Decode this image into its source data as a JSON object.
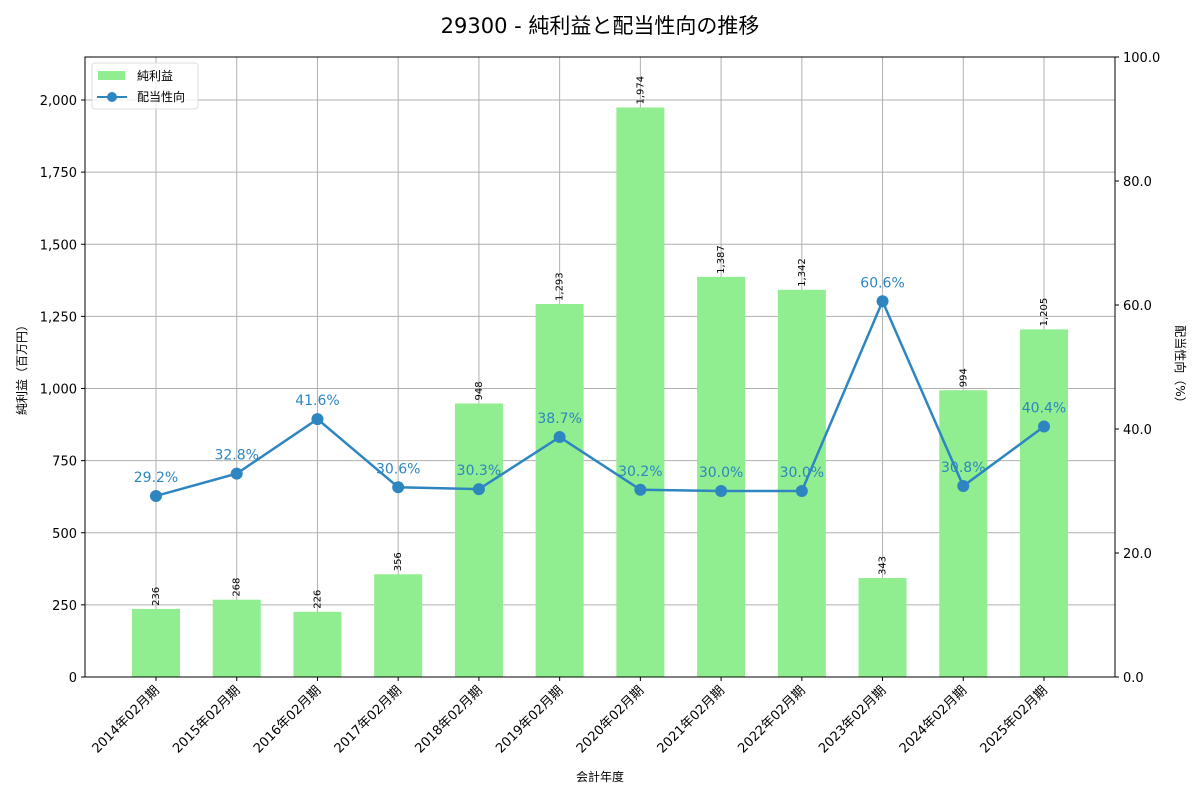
{
  "title": "29300 - 純利益と配当性向の推移",
  "colors": {
    "bar": "#90ee90",
    "line": "#2e86c1",
    "grid": "#b0b0b0"
  },
  "chart_data": {
    "type": "bar",
    "title": "29300 - 純利益と配当性向の推移",
    "xlabel": "会計年度",
    "ylabel": "純利益（百万円）",
    "y2label": "配当性向（%）",
    "categories": [
      "2014年02月期",
      "2015年02月期",
      "2016年02月期",
      "2017年02月期",
      "2018年02月期",
      "2019年02月期",
      "2020年02月期",
      "2021年02月期",
      "2022年02月期",
      "2023年02月期",
      "2024年02月期",
      "2025年02月期"
    ],
    "series": [
      {
        "name": "純利益",
        "type": "bar",
        "axis": "left",
        "values": [
          236,
          268,
          226,
          356,
          948,
          1293,
          1974,
          1387,
          1342,
          343,
          994,
          1205
        ],
        "labels": [
          "236",
          "268",
          "226",
          "356",
          "948",
          "1,293",
          "1,974",
          "1,387",
          "1,342",
          "343",
          "994",
          "1,205"
        ]
      },
      {
        "name": "配当性向",
        "type": "line",
        "axis": "right",
        "values": [
          29.2,
          32.8,
          41.6,
          30.6,
          30.3,
          38.7,
          30.2,
          30.0,
          30.0,
          60.6,
          30.8,
          40.4
        ],
        "labels": [
          "29.2%",
          "32.8%",
          "41.6%",
          "30.6%",
          "30.3%",
          "38.7%",
          "30.2%",
          "30.0%",
          "30.0%",
          "60.6%",
          "30.8%",
          "40.4%"
        ]
      }
    ],
    "ylim": [
      0,
      2150
    ],
    "y2lim": [
      0,
      100
    ],
    "yticks": [
      "0",
      "250",
      "500",
      "750",
      "1,000",
      "1,250",
      "1,500",
      "1,750",
      "2,000"
    ],
    "ytick_values": [
      0,
      250,
      500,
      750,
      1000,
      1250,
      1500,
      1750,
      2000
    ],
    "y2ticks": [
      "0.0",
      "20.0",
      "40.0",
      "60.0",
      "80.0",
      "100.0"
    ],
    "y2tick_values": [
      0,
      20,
      40,
      60,
      80,
      100
    ],
    "grid": true,
    "legend_position": "upper left",
    "legend": [
      "純利益",
      "配当性向"
    ]
  }
}
